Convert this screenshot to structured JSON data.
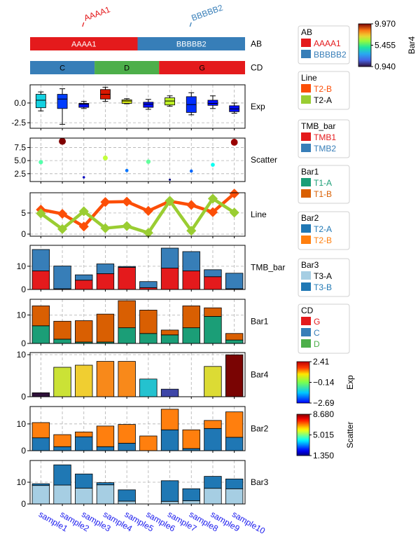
{
  "colors": {
    "AAAA1": "#e41a1c",
    "BBBBB2": "#377eb8",
    "G": "#e41a1c",
    "C": "#377eb8",
    "D": "#4daf4a",
    "T2-B_line": "#fc4e07",
    "T2-A_line": "#9acd32",
    "TMB1": "#e41a1c",
    "TMB2": "#377eb8",
    "T1-A": "#1b9e77",
    "T1-B": "#d95f02",
    "Bar2-T2-A": "#1f77b4",
    "Bar2-T2-B": "#ff7f0e",
    "T3-A": "#a6cee3",
    "T3-B": "#1f78b4",
    "grid": "#b0b0b0",
    "sample_label": "#1a1aee"
  },
  "samples": [
    "sample1",
    "sample2",
    "sample3",
    "sample4",
    "sample5",
    "sample6",
    "sample7",
    "sample8",
    "sample9",
    "sample10"
  ],
  "top_annotations": {
    "AB": {
      "label": "AB",
      "groups": [
        {
          "name": "AAAA1",
          "from": 0,
          "to": 5
        },
        {
          "name": "BBBBB2",
          "from": 5,
          "to": 10
        }
      ]
    },
    "CD": {
      "label": "CD",
      "groups": [
        {
          "name": "C",
          "from": 0,
          "to": 3
        },
        {
          "name": "D",
          "from": 3,
          "to": 6
        },
        {
          "name": "G",
          "from": 6,
          "to": 10
        }
      ]
    }
  },
  "chart_data": [
    {
      "type": "box",
      "name": "Exp",
      "label": "Exp",
      "ylim": [
        -3.2,
        2.3
      ],
      "yticks": [
        "-2.5",
        "0.0"
      ],
      "ytick_values": [
        -2.5,
        0
      ],
      "color_scale": {
        "label": "Exp",
        "min": -2.69,
        "max": 2.41,
        "ticks": [
          "2.41",
          "−0.14",
          "−2.69"
        ]
      },
      "boxes": [
        {
          "q1": -0.6,
          "med": 0.35,
          "q3": 1.1,
          "lo": -1.0,
          "hi": 1.4,
          "color_value": -1.2
        },
        {
          "q1": -0.7,
          "med": 0.5,
          "q3": 1.1,
          "lo": -2.7,
          "hi": 1.8,
          "color_value": -2.3
        },
        {
          "q1": -0.55,
          "med": -0.15,
          "q3": -0.05,
          "lo": -0.7,
          "hi": 0.2,
          "color_value": -2.6
        },
        {
          "q1": 0.5,
          "med": 1.1,
          "q3": 1.7,
          "lo": 0.2,
          "hi": 2.0,
          "color_value": 2.1
        },
        {
          "q1": -0.05,
          "med": 0.25,
          "q3": 0.4,
          "lo": -0.1,
          "hi": 0.55,
          "color_value": 0.6
        },
        {
          "q1": -0.55,
          "med": -0.15,
          "q3": 0.1,
          "lo": -0.8,
          "hi": 0.45,
          "color_value": -2.6
        },
        {
          "q1": -0.25,
          "med": 0.25,
          "q3": 0.65,
          "lo": -0.4,
          "hi": 0.9,
          "color_value": 0.4
        },
        {
          "q1": -1.2,
          "med": -0.2,
          "q3": 0.8,
          "lo": -1.5,
          "hi": 1.3,
          "color_value": -2.4
        },
        {
          "q1": -0.3,
          "med": -0.05,
          "q3": 0.35,
          "lo": -0.7,
          "hi": 0.9,
          "color_value": -2.6
        },
        {
          "q1": -1.1,
          "med": -0.75,
          "q3": -0.35,
          "lo": -1.3,
          "hi": 0.0,
          "color_value": -2.6
        }
      ]
    },
    {
      "type": "scatter",
      "name": "Scatter",
      "label": "Scatter",
      "ylim": [
        1.0,
        9.3
      ],
      "yticks": [
        "2.5",
        "5.0",
        "7.5"
      ],
      "ytick_values": [
        2.5,
        5.0,
        7.5
      ],
      "color_scale": {
        "label": "Scatter",
        "min": 1.35,
        "max": 8.68,
        "ticks": [
          "8.680",
          "5.015",
          "1.350"
        ]
      },
      "values": [
        4.7,
        8.68,
        1.8,
        5.5,
        3.1,
        4.8,
        1.35,
        3.0,
        4.2,
        8.5
      ]
    },
    {
      "type": "line",
      "name": "Line",
      "label": "Line",
      "ylim": [
        -0.5,
        9.8
      ],
      "yticks": [
        "0",
        "5"
      ],
      "ytick_values": [
        0,
        5
      ],
      "series": [
        {
          "name": "T2-B",
          "values": [
            5.8,
            4.8,
            1.8,
            7.6,
            7.7,
            5.5,
            7.8,
            6.9,
            5.2,
            9.6
          ]
        },
        {
          "name": "T2-A",
          "values": [
            4.9,
            1.2,
            5.4,
            1.4,
            1.9,
            0.3,
            7.9,
            0.8,
            8.4,
            5.1
          ]
        }
      ]
    },
    {
      "type": "stacked-bar",
      "name": "TMB_bar",
      "label": "TMB_bar",
      "ylim": [
        0,
        19
      ],
      "yticks": [
        "0",
        "10"
      ],
      "ytick_values": [
        0,
        10
      ],
      "series": [
        {
          "name": "TMB1",
          "values": [
            8.0,
            0.3,
            4.0,
            6.8,
            9.5,
            0.8,
            9.2,
            8.0,
            5.5,
            0.3
          ]
        },
        {
          "name": "TMB2",
          "values": [
            9.2,
            9.8,
            2.3,
            4.2,
            0.4,
            2.6,
            8.6,
            8.3,
            3.0,
            6.7
          ]
        }
      ]
    },
    {
      "type": "stacked-bar",
      "name": "Bar1",
      "label": "Bar1",
      "ylim": [
        0,
        15.5
      ],
      "yticks": [
        "0",
        "10"
      ],
      "ytick_values": [
        0,
        10
      ],
      "series": [
        {
          "name": "T1-A",
          "values": [
            6.2,
            1.5,
            0.5,
            0.5,
            5.5,
            3.5,
            3.0,
            5.5,
            9.5,
            1.2
          ]
        },
        {
          "name": "T1-B",
          "values": [
            7.0,
            6.3,
            7.5,
            9.8,
            9.5,
            8.2,
            1.7,
            7.7,
            3.0,
            2.3
          ]
        }
      ]
    },
    {
      "type": "bar",
      "name": "Bar4",
      "label": "Bar4",
      "ylim": [
        0,
        10.5
      ],
      "yticks": [
        "0",
        "10"
      ],
      "ytick_values": [
        0,
        10
      ],
      "color_scale": {
        "label": "Bar4",
        "min": 0.94,
        "max": 9.97,
        "ticks": [
          "9.970",
          "5.455",
          "0.940"
        ]
      },
      "values": [
        0.94,
        7.0,
        7.5,
        8.4,
        8.4,
        4.2,
        1.8,
        0.0,
        7.2,
        9.97
      ]
    },
    {
      "type": "stacked-bar",
      "name": "Bar2",
      "label": "Bar2",
      "ylim": [
        0,
        16.5
      ],
      "yticks": [
        "0",
        "10"
      ],
      "ytick_values": [
        0,
        10
      ],
      "series": [
        {
          "name": "T2-A",
          "values": [
            4.8,
            1.5,
            5.2,
            1.5,
            2.8,
            0.0,
            7.8,
            0.8,
            8.3,
            5.0
          ]
        },
        {
          "name": "T2-B",
          "values": [
            5.7,
            4.5,
            1.8,
            7.7,
            7.0,
            5.5,
            7.7,
            7.0,
            3.0,
            9.5
          ]
        }
      ]
    },
    {
      "type": "stacked-bar",
      "name": "Bar3",
      "label": "Bar3",
      "ylim": [
        0,
        20
      ],
      "yticks": [
        "0",
        "10"
      ],
      "ytick_values": [
        0,
        10
      ],
      "series": [
        {
          "name": "T3-A",
          "values": [
            8.5,
            8.7,
            7.3,
            8.8,
            1.3,
            0.0,
            1.2,
            1.5,
            7.2,
            7.0
          ]
        },
        {
          "name": "T3-B",
          "values": [
            0.8,
            9.3,
            6.5,
            1.0,
            5.2,
            0.0,
            9.5,
            5.5,
            5.5,
            4.5
          ]
        }
      ]
    }
  ],
  "legends": [
    {
      "title": "AB",
      "items": [
        {
          "name": "AAAA1",
          "color": "#e41a1c"
        },
        {
          "name": "BBBBB2",
          "color": "#377eb8"
        }
      ]
    },
    {
      "title": "Line",
      "items": [
        {
          "name": "T2-B",
          "color": "#fc4e07"
        },
        {
          "name": "T2-A",
          "color": "#9acd32",
          "text_color": "#000000"
        }
      ]
    },
    {
      "title": "TMB_bar",
      "items": [
        {
          "name": "TMB1",
          "color": "#e41a1c"
        },
        {
          "name": "TMB2",
          "color": "#377eb8"
        }
      ]
    },
    {
      "title": "Bar1",
      "items": [
        {
          "name": "T1-A",
          "color": "#1b9e77"
        },
        {
          "name": "T1-B",
          "color": "#d95f02"
        }
      ]
    },
    {
      "title": "Bar2",
      "items": [
        {
          "name": "T2-A",
          "color": "#1f77b4"
        },
        {
          "name": "T2-B",
          "color": "#ff7f0e"
        }
      ]
    },
    {
      "title": "Bar3",
      "items": [
        {
          "name": "T3-A",
          "color": "#a6cee3",
          "text_color": "#000000"
        },
        {
          "name": "T3-B",
          "color": "#1f78b4"
        }
      ]
    },
    {
      "title": "CD",
      "items": [
        {
          "name": "G",
          "color": "#e41a1c"
        },
        {
          "name": "C",
          "color": "#377eb8"
        },
        {
          "name": "D",
          "color": "#4daf4a"
        }
      ]
    }
  ]
}
